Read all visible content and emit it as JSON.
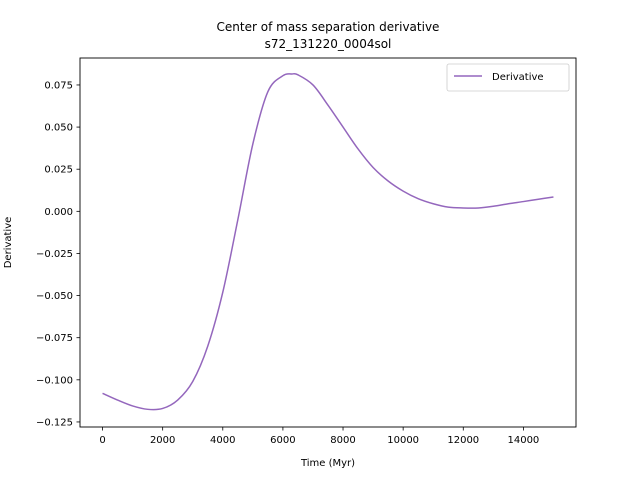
{
  "chart_data": {
    "type": "line",
    "title": "Center of mass separation derivative",
    "subtitle": "s72_131220_0004sol",
    "xlabel": "Time (Myr)",
    "ylabel": "Derivative",
    "xlim": [
      -750,
      15750
    ],
    "ylim": [
      -0.128,
      0.091
    ],
    "x_ticks": [
      0,
      2000,
      4000,
      6000,
      8000,
      10000,
      12000,
      14000
    ],
    "x_tick_labels": [
      "0",
      "2000",
      "4000",
      "6000",
      "8000",
      "10000",
      "12000",
      "14000"
    ],
    "y_ticks": [
      -0.125,
      -0.1,
      -0.075,
      -0.05,
      -0.025,
      0.0,
      0.025,
      0.05,
      0.075
    ],
    "y_tick_labels": [
      "−0.125",
      "−0.100",
      "−0.075",
      "−0.050",
      "−0.025",
      "0.000",
      "0.025",
      "0.050",
      "0.075"
    ],
    "grid": false,
    "legend_position": "top-right",
    "series": [
      {
        "name": "Derivative",
        "color": "#9467bd",
        "x": [
          0,
          500,
          1000,
          1500,
          2000,
          2500,
          3000,
          3500,
          4000,
          4500,
          5000,
          5500,
          6000,
          6300,
          6500,
          7000,
          7500,
          8000,
          8500,
          9000,
          9500,
          10000,
          10500,
          11000,
          11500,
          12000,
          12500,
          13000,
          13500,
          14000,
          14500,
          15000
        ],
        "y": [
          -0.108,
          -0.112,
          -0.1155,
          -0.1175,
          -0.117,
          -0.112,
          -0.101,
          -0.08,
          -0.048,
          -0.005,
          0.04,
          0.071,
          0.0805,
          0.0815,
          0.081,
          0.075,
          0.063,
          0.05,
          0.037,
          0.026,
          0.018,
          0.012,
          0.0075,
          0.0045,
          0.0025,
          0.002,
          0.002,
          0.003,
          0.0045,
          0.0058,
          0.0072,
          0.0085
        ]
      }
    ]
  }
}
